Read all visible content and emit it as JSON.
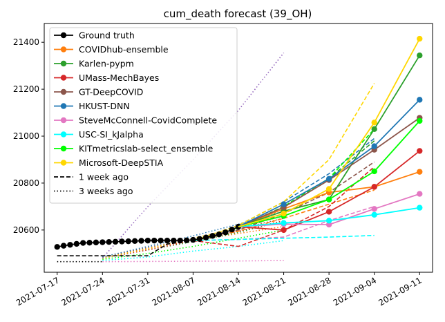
{
  "chart_data": {
    "type": "line",
    "title": "cum_death forecast (39_OH)",
    "xlabel": "",
    "ylabel": "",
    "x_ticks": [
      "2021-07-17",
      "2021-07-24",
      "2021-07-31",
      "2021-08-07",
      "2021-08-14",
      "2021-08-21",
      "2021-08-28",
      "2021-09-04",
      "2021-09-11"
    ],
    "y_ticks": [
      20600,
      20800,
      21000,
      21200,
      21400
    ],
    "xlim": [
      "2021-07-15",
      "2021-09-13"
    ],
    "ylim": [
      20420,
      21480
    ],
    "grid": false,
    "legend_position": "top-left",
    "ground_truth": {
      "name": "Ground truth",
      "color": "#000000",
      "x": [
        "2021-07-17",
        "2021-07-18",
        "2021-07-19",
        "2021-07-20",
        "2021-07-21",
        "2021-07-22",
        "2021-07-23",
        "2021-07-24",
        "2021-07-25",
        "2021-07-26",
        "2021-07-27",
        "2021-07-28",
        "2021-07-29",
        "2021-07-30",
        "2021-07-31",
        "2021-08-01",
        "2021-08-02",
        "2021-08-03",
        "2021-08-04",
        "2021-08-05",
        "2021-08-06",
        "2021-08-07",
        "2021-08-08",
        "2021-08-09",
        "2021-08-10",
        "2021-08-11",
        "2021-08-12",
        "2021-08-13",
        "2021-08-14"
      ],
      "y": [
        20528,
        20533,
        20537,
        20541,
        20545,
        20546,
        20547,
        20548,
        20549,
        20550,
        20551,
        20552,
        20553,
        20554,
        20555,
        20555,
        20555,
        20555,
        20555,
        20555,
        20556,
        20558,
        20562,
        20568,
        20575,
        20581,
        20590,
        20602,
        20614
      ]
    },
    "series": [
      {
        "name": "COVIDhub-ensemble",
        "color": "#ff7f0e",
        "x": [
          "2021-08-14",
          "2021-08-21",
          "2021-08-28",
          "2021-09-04",
          "2021-09-11"
        ],
        "y": [
          20614,
          20690,
          20760,
          20784,
          20848
        ],
        "week1": {
          "x": [
            "2021-08-07",
            "2021-08-14",
            "2021-08-21",
            "2021-08-28",
            "2021-09-04"
          ],
          "y": [
            20555,
            20595,
            20650,
            20710,
            20770
          ]
        },
        "week3": {
          "x": [
            "2021-07-24",
            "2021-07-31",
            "2021-08-07",
            "2021-08-14",
            "2021-08-21"
          ],
          "y": [
            20485,
            20520,
            20555,
            20585,
            20615
          ]
        }
      },
      {
        "name": "Karlen-pypm",
        "color": "#2ca02c",
        "x": [
          "2021-08-14",
          "2021-08-21",
          "2021-08-28",
          "2021-09-04",
          "2021-09-11"
        ],
        "y": [
          20614,
          20680,
          20730,
          21030,
          21344
        ],
        "week1": {
          "x": [
            "2021-08-07",
            "2021-08-14",
            "2021-08-21",
            "2021-08-28",
            "2021-09-04"
          ],
          "y": [
            20555,
            20610,
            20700,
            20820,
            20980
          ]
        },
        "week3": {
          "x": [
            "2021-07-24",
            "2021-07-31",
            "2021-08-07",
            "2021-08-14",
            "2021-08-21"
          ],
          "y": [
            20480,
            20515,
            20550,
            20590,
            20640
          ]
        }
      },
      {
        "name": "UMass-MechBayes",
        "color": "#d62728",
        "x": [
          "2021-08-14",
          "2021-08-21",
          "2021-08-28",
          "2021-09-04",
          "2021-09-11"
        ],
        "y": [
          20614,
          20600,
          20678,
          20784,
          20937
        ],
        "week1": {
          "x": [
            "2021-08-07",
            "2021-08-14",
            "2021-08-21",
            "2021-08-28",
            "2021-09-04"
          ],
          "y": [
            20555,
            20530,
            20600,
            20700,
            20870
          ]
        },
        "week3": {
          "x": [
            "2021-07-24",
            "2021-07-31",
            "2021-08-07",
            "2021-08-14",
            "2021-08-21"
          ],
          "y": [
            20480,
            20515,
            20555,
            20595,
            20640
          ]
        }
      },
      {
        "name": "GT-DeepCOVID",
        "color": "#8c564b",
        "x": [
          "2021-08-14",
          "2021-08-21",
          "2021-08-28",
          "2021-09-04",
          "2021-09-11"
        ],
        "y": [
          20614,
          20697,
          20813,
          20942,
          21078
        ],
        "week1": {
          "x": [
            "2021-08-07",
            "2021-08-14",
            "2021-08-21",
            "2021-08-28",
            "2021-09-04"
          ],
          "y": [
            20555,
            20600,
            20670,
            20760,
            20890
          ]
        },
        "week3": {
          "x": [
            "2021-07-24",
            "2021-07-31",
            "2021-08-07",
            "2021-08-14",
            "2021-08-21"
          ],
          "y": [
            20485,
            20525,
            20565,
            20605,
            20650
          ]
        }
      },
      {
        "name": "HKUST-DNN",
        "color": "#1f77b4",
        "x": [
          "2021-08-14",
          "2021-08-21",
          "2021-08-28",
          "2021-09-04",
          "2021-09-11"
        ],
        "y": [
          20614,
          20710,
          20818,
          20957,
          21155
        ],
        "week1": {
          "x": [
            "2021-08-07",
            "2021-08-14",
            "2021-08-21",
            "2021-08-28",
            "2021-09-04"
          ],
          "y": [
            20555,
            20620,
            20720,
            20840,
            20990
          ]
        },
        "week3": {
          "x": [
            "2021-07-24",
            "2021-07-31",
            "2021-08-07",
            "2021-08-14",
            "2021-08-21"
          ],
          "y": [
            20485,
            20530,
            20575,
            20625,
            20680
          ]
        }
      },
      {
        "name": "SteveMcConnell-CovidComplete",
        "color": "#e377c2",
        "x": [
          "2021-08-14",
          "2021-08-21",
          "2021-08-28",
          "2021-09-04",
          "2021-09-11"
        ],
        "y": [
          20614,
          20625,
          20623,
          20690,
          20754
        ],
        "week1": {
          "x": [
            "2021-08-07",
            "2021-08-14",
            "2021-08-21",
            "2021-08-28",
            "2021-09-04"
          ],
          "y": [
            20555,
            20560,
            20570,
            20640,
            20700
          ]
        },
        "week3": {
          "x": [
            "2021-07-24",
            "2021-07-31",
            "2021-08-07",
            "2021-08-14",
            "2021-08-21"
          ],
          "y": [
            20465,
            20466,
            20467,
            20468,
            20470
          ]
        }
      },
      {
        "name": "USC-SI_kJalpha",
        "color": "#00ffff",
        "x": [
          "2021-08-14",
          "2021-08-21",
          "2021-08-28",
          "2021-09-04",
          "2021-09-11"
        ],
        "y": [
          20614,
          20630,
          20640,
          20665,
          20695
        ],
        "week1": {
          "x": [
            "2021-08-07",
            "2021-08-14",
            "2021-08-21",
            "2021-08-28",
            "2021-09-04"
          ],
          "y": [
            20555,
            20560,
            20565,
            20570,
            20577
          ]
        },
        "week3": {
          "x": [
            "2021-07-24",
            "2021-07-31",
            "2021-08-07",
            "2021-08-14",
            "2021-08-21"
          ],
          "y": [
            20470,
            20485,
            20510,
            20530,
            20555
          ]
        }
      },
      {
        "name": "KITmetricslab-select_ensemble",
        "color": "#00ff00",
        "x": [
          "2021-08-14",
          "2021-08-21",
          "2021-08-28",
          "2021-09-04",
          "2021-09-11"
        ],
        "y": [
          20614,
          20660,
          20730,
          20850,
          21065
        ],
        "week1": {
          "x": [
            "2021-08-07",
            "2021-08-14",
            "2021-08-21",
            "2021-08-28",
            "2021-09-04"
          ],
          "y": [
            20555,
            20610,
            20700,
            20820,
            21030
          ]
        },
        "week3": {
          "x": [
            "2021-07-24",
            "2021-07-31",
            "2021-08-07",
            "2021-08-14",
            "2021-08-21"
          ],
          "y": [
            20475,
            20500,
            20530,
            20565,
            20600
          ]
        }
      },
      {
        "name": "Microsoft-DeepSTIA",
        "color": "#ffd700",
        "x": [
          "2021-08-14",
          "2021-08-21",
          "2021-08-28",
          "2021-09-04",
          "2021-09-11"
        ],
        "y": [
          20614,
          20670,
          20775,
          21058,
          21415
        ],
        "week1": {
          "x": [
            "2021-08-07",
            "2021-08-14",
            "2021-08-21",
            "2021-08-28",
            "2021-09-04"
          ],
          "y": [
            20555,
            20620,
            20720,
            20900,
            21225
          ]
        },
        "week3": {
          "x": [
            "2021-07-24",
            "2021-07-31",
            "2021-08-07",
            "2021-08-14",
            "2021-08-21"
          ],
          "y": [
            20480,
            20520,
            20565,
            20610,
            20660
          ]
        }
      }
    ],
    "extra_3w": [
      {
        "color": "#9467bd",
        "x": [
          "2021-07-24",
          "2021-07-31",
          "2021-08-07",
          "2021-08-14",
          "2021-08-21"
        ],
        "y": [
          20480,
          20700,
          20900,
          21110,
          21355
        ]
      }
    ],
    "legend": [
      {
        "label": "Ground truth",
        "color": "#000000",
        "kind": "marker"
      },
      {
        "label": "COVIDhub-ensemble",
        "color": "#ff7f0e",
        "kind": "marker"
      },
      {
        "label": "Karlen-pypm",
        "color": "#2ca02c",
        "kind": "marker"
      },
      {
        "label": "UMass-MechBayes",
        "color": "#d62728",
        "kind": "marker"
      },
      {
        "label": "GT-DeepCOVID",
        "color": "#8c564b",
        "kind": "marker"
      },
      {
        "label": "HKUST-DNN",
        "color": "#1f77b4",
        "kind": "marker"
      },
      {
        "label": "SteveMcConnell-CovidComplete",
        "color": "#e377c2",
        "kind": "marker"
      },
      {
        "label": "USC-SI_kJalpha",
        "color": "#00ffff",
        "kind": "marker"
      },
      {
        "label": "KITmetricslab-select_ensemble",
        "color": "#00ff00",
        "kind": "marker"
      },
      {
        "label": "Microsoft-DeepSTIA",
        "color": "#ffd700",
        "kind": "marker"
      },
      {
        "label": "1 week ago",
        "color": "#000000",
        "kind": "dashed"
      },
      {
        "label": "3 weeks ago",
        "color": "#000000",
        "kind": "dotted"
      }
    ],
    "one_week_ago_truth": {
      "color": "#000000",
      "x": [
        "2021-07-17",
        "2021-07-24",
        "2021-07-31",
        "2021-08-03",
        "2021-08-07"
      ],
      "y": [
        20490,
        20490,
        20490,
        20540,
        20555
      ]
    },
    "three_weeks_ago_truth": {
      "color": "#000000",
      "x": [
        "2021-07-17",
        "2021-07-24"
      ],
      "y": [
        20465,
        20465
      ]
    }
  }
}
